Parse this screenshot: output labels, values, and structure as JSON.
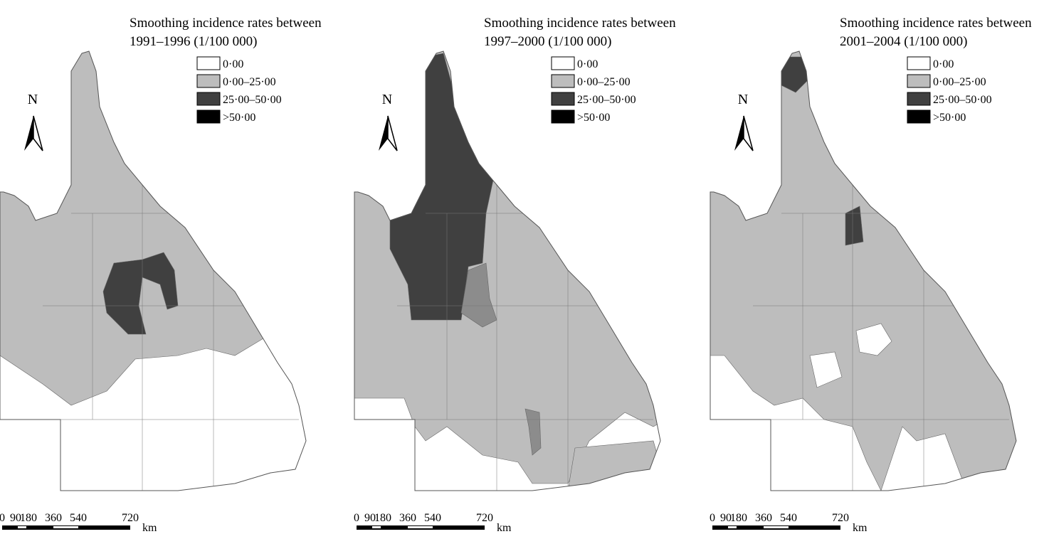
{
  "panels": [
    {
      "title": [
        "Smoothing incidence rates between",
        "1991–1996 (1/100 000)"
      ],
      "legend": [
        {
          "label": "0·00",
          "color": "#ffffff"
        },
        {
          "label": "0·00–25·00",
          "color": "#bdbdbd"
        },
        {
          "label": "25·00–50·00",
          "color": "#404040"
        },
        {
          "label": ">50·00",
          "color": "#000000"
        }
      ],
      "north": "N",
      "scale": {
        "ticks": [
          "0",
          "90",
          "180",
          "360",
          "540",
          "720"
        ],
        "unit": "km"
      }
    },
    {
      "title": [
        "Smoothing incidence rates between",
        "1997–2000 (1/100 000)"
      ],
      "legend": [
        {
          "label": "0·00",
          "color": "#ffffff"
        },
        {
          "label": "0·00–25·00",
          "color": "#bdbdbd"
        },
        {
          "label": "25·00–50·00",
          "color": "#404040"
        },
        {
          "label": ">50·00",
          "color": "#000000"
        }
      ],
      "north": "N",
      "scale": {
        "ticks": [
          "0",
          "90",
          "180",
          "360",
          "540",
          "720"
        ],
        "unit": "km"
      }
    },
    {
      "title": [
        "Smoothing incidence rates between",
        "2001–2004 (1/100 000)"
      ],
      "legend": [
        {
          "label": "0·00",
          "color": "#ffffff"
        },
        {
          "label": "0·00–25·00",
          "color": "#bdbdbd"
        },
        {
          "label": "25·00–50·00",
          "color": "#404040"
        },
        {
          "label": ">50·00",
          "color": "#000000"
        }
      ],
      "north": "N",
      "scale": {
        "ticks": [
          "0",
          "90",
          "180",
          "360",
          "540",
          "720"
        ],
        "unit": "km"
      }
    }
  ]
}
